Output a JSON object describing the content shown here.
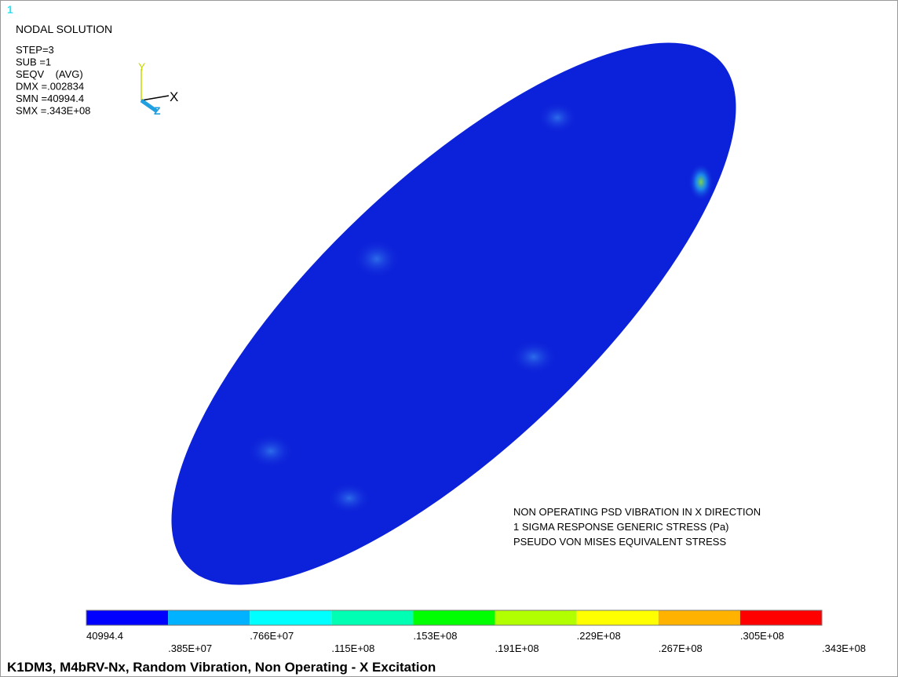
{
  "window_number": "1",
  "info": {
    "title": "NODAL SOLUTION",
    "lines": [
      "STEP=3",
      "SUB =1",
      "SEQV    (AVG)",
      "DMX =.002834",
      "SMN =40994.4",
      "SMX =.343E+08"
    ]
  },
  "triad": {
    "y": "Y",
    "x": "X",
    "z": "Z"
  },
  "annotation": [
    "NON OPERATING PSD VIBRATION IN X DIRECTION",
    "1 SIGMA RESPONSE GENERIC STRESS (Pa)",
    "PSEUDO VON MISES EQUIVALENT STRESS"
  ],
  "legend": {
    "colors": [
      "#0000ff",
      "#00b2ff",
      "#00ffff",
      "#00ffb2",
      "#00ff00",
      "#b2ff00",
      "#ffff00",
      "#ffb200",
      "#ff0000"
    ],
    "labels": [
      "40994.4",
      ".385E+07",
      ".766E+07",
      ".115E+08",
      ".153E+08",
      ".191E+08",
      ".229E+08",
      ".267E+08",
      ".305E+08",
      ".343E+08"
    ]
  },
  "footer": "K1DM3, M4bRV-Nx, Random Vibration, Non Operating - X Excitation"
}
